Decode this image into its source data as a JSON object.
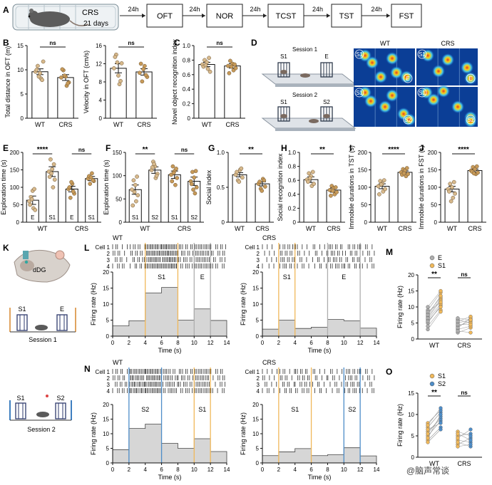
{
  "timeline": {
    "cage_label": "CRS",
    "days_label": "21 days",
    "interval": "24h",
    "steps": [
      "OFT",
      "NOR",
      "TCST",
      "TST",
      "FST"
    ]
  },
  "panel_letters": [
    "A",
    "B",
    "C",
    "D",
    "E",
    "F",
    "G",
    "H",
    "I",
    "J",
    "K",
    "L",
    "M",
    "N",
    "O"
  ],
  "groups": [
    "WT",
    "CRS"
  ],
  "sig": {
    "ns": "ns",
    "p2": "**",
    "p4": "****"
  },
  "colors": {
    "wt_fill": "#ffffff",
    "crs_fill": "#ffffff",
    "pt_wt": "#d7b98c",
    "pt_crs": "#c79a59",
    "ramp_hot": "#e53b20",
    "ramp_cold": "#0b3e96",
    "E": "#aeaeae",
    "S1": "#f0b85a",
    "S2": "#4e8dc8",
    "hist": "#d6d6d6"
  },
  "chart_data": [
    {
      "panel": "B1",
      "type": "bar",
      "ylabel": "Total distance in OFT (m)",
      "ylim": [
        0,
        15
      ],
      "yticks": [
        0,
        5,
        10,
        15
      ],
      "categories": [
        "WT",
        "CRS"
      ],
      "values": [
        9.6,
        8.4
      ],
      "err": [
        0.6,
        0.6
      ],
      "points": [
        [
          9.6,
          8.2,
          10.8,
          11.7,
          9.3,
          10.0,
          7.9,
          8.6
        ],
        [
          8.4,
          6.7,
          9.9,
          7.4,
          8.6,
          10.1,
          7.2,
          8.8
        ]
      ],
      "sig": "ns"
    },
    {
      "panel": "B2",
      "type": "bar",
      "ylabel": "Velocity in OFT (cm/s)",
      "ylim": [
        0,
        16
      ],
      "yticks": [
        0,
        4,
        8,
        12,
        16
      ],
      "categories": [
        "WT",
        "CRS"
      ],
      "values": [
        11.0,
        10.2
      ],
      "err": [
        1.0,
        0.7
      ],
      "points": [
        [
          11.0,
          7.5,
          14.0,
          12.1,
          9.4,
          13.5,
          8.2,
          12.3
        ],
        [
          10.0,
          8.1,
          11.5,
          9.1,
          12.0,
          10.8,
          9.5
        ]
      ],
      "sig": "ns"
    },
    {
      "panel": "C",
      "type": "bar",
      "ylabel": "Novel object recognition index",
      "ylim": [
        0,
        1
      ],
      "yticks": [
        0,
        0.2,
        0.4,
        0.6,
        0.8,
        1
      ],
      "ytick_labels": [
        "0",
        "0.2",
        "0.4",
        "0.6",
        "0.8",
        "1.0"
      ],
      "categories": [
        "WT",
        "CRS"
      ],
      "values": [
        0.74,
        0.72
      ],
      "err": [
        0.03,
        0.03
      ],
      "points": [
        [
          0.74,
          0.68,
          0.8,
          0.64,
          0.77,
          0.71,
          0.83,
          0.73
        ],
        [
          0.72,
          0.66,
          0.79,
          0.69,
          0.75,
          0.62,
          0.74,
          0.71
        ]
      ],
      "sig": "ns"
    },
    {
      "panel": "E",
      "type": "bar",
      "ylabel": "Exploration time (s)",
      "ylim": [
        0,
        200
      ],
      "yticks": [
        0,
        50,
        100,
        150,
        200
      ],
      "categories": [
        "E",
        "S1",
        "E",
        "S1"
      ],
      "groups": [
        "WT",
        "CRS"
      ],
      "values": [
        63,
        145,
        95,
        125
      ],
      "err": [
        12,
        14,
        8,
        6
      ],
      "points": [
        [
          60,
          40,
          72,
          35,
          90,
          50,
          95,
          66
        ],
        [
          145,
          100,
          180,
          122,
          152,
          130,
          166,
          140
        ],
        [
          95,
          70,
          110,
          82,
          100,
          115,
          88
        ],
        [
          125,
          110,
          140,
          118,
          132,
          128,
          120
        ]
      ],
      "sig": [
        "****",
        "ns"
      ]
    },
    {
      "panel": "F",
      "type": "bar",
      "ylabel": "Exploration time (s)",
      "ylim": [
        0,
        150
      ],
      "yticks": [
        0,
        50,
        100,
        150
      ],
      "categories": [
        "S1",
        "S2",
        "S1",
        "S2"
      ],
      "groups": [
        "WT",
        "CRS"
      ],
      "values": [
        70,
        112,
        102,
        88
      ],
      "err": [
        10,
        7,
        8,
        9
      ],
      "points": [
        [
          70,
          45,
          90,
          58,
          80,
          36,
          98,
          65
        ],
        [
          112,
          95,
          130,
          104,
          120,
          118,
          100,
          125
        ],
        [
          102,
          80,
          120,
          95,
          110,
          88,
          115,
          106
        ],
        [
          88,
          62,
          108,
          75,
          96,
          82,
          110,
          70
        ]
      ],
      "sig": [
        "**",
        "ns"
      ]
    },
    {
      "panel": "G",
      "type": "bar",
      "ylabel": "Social index",
      "ylim": [
        0,
        1
      ],
      "yticks": [
        0,
        0.5,
        1
      ],
      "ytick_labels": [
        "0",
        "0.5",
        "1.0"
      ],
      "categories": [
        "WT",
        "CRS"
      ],
      "values": [
        0.68,
        0.55
      ],
      "err": [
        0.03,
        0.03
      ],
      "points": [
        [
          0.68,
          0.6,
          0.75,
          0.64,
          0.72,
          0.58,
          0.77
        ],
        [
          0.55,
          0.48,
          0.62,
          0.51,
          0.58,
          0.45,
          0.6
        ]
      ],
      "sig": "**"
    },
    {
      "panel": "H",
      "type": "bar",
      "ylabel": "Social recognition index",
      "ylim": [
        0,
        1
      ],
      "yticks": [
        0,
        0.2,
        0.4,
        0.6,
        0.8,
        1
      ],
      "ytick_labels": [
        "0",
        "0.2",
        "0.4",
        "0.6",
        "0.8",
        "1.0"
      ],
      "categories": [
        "WT",
        "CRS"
      ],
      "values": [
        0.61,
        0.46
      ],
      "err": [
        0.04,
        0.03
      ],
      "points": [
        [
          0.61,
          0.52,
          0.7,
          0.55,
          0.66,
          0.58,
          0.72,
          0.63
        ],
        [
          0.46,
          0.4,
          0.52,
          0.43,
          0.49,
          0.38,
          0.5,
          0.45
        ]
      ],
      "sig": "**"
    },
    {
      "panel": "I",
      "type": "bar",
      "ylabel": "Immobile durations in TST (s)",
      "ylim": [
        0,
        200
      ],
      "yticks": [
        0,
        50,
        100,
        150,
        200
      ],
      "categories": [
        "WT",
        "CRS"
      ],
      "values": [
        103,
        143
      ],
      "err": [
        7,
        4
      ],
      "points": [
        [
          103,
          88,
          118,
          95,
          110,
          80,
          120,
          108
        ],
        [
          143,
          132,
          152,
          138,
          148,
          136,
          155,
          140
        ]
      ],
      "sig": "****"
    },
    {
      "panel": "J",
      "type": "bar",
      "ylabel": "Immobile durations in FST (s)",
      "ylim": [
        0,
        200
      ],
      "yticks": [
        0,
        50,
        100,
        150,
        200
      ],
      "categories": [
        "WT",
        "CRS"
      ],
      "values": [
        95,
        148
      ],
      "err": [
        8,
        4
      ],
      "points": [
        [
          95,
          70,
          110,
          82,
          100,
          88,
          115,
          60
        ],
        [
          148,
          138,
          158,
          142,
          152,
          145,
          160,
          140
        ]
      ],
      "sig": "****"
    },
    {
      "panel": "L1",
      "type": "area",
      "group": "WT",
      "ylabel": "Firing rate (Hz)",
      "xlabel": "Time (s)",
      "ylim": [
        0,
        20
      ],
      "yticks": [
        0,
        5,
        10,
        15,
        20
      ],
      "xlim": [
        0,
        14
      ],
      "xticks": [
        0,
        2,
        4,
        6,
        8,
        10,
        12,
        14
      ],
      "bins": [
        0,
        2,
        4,
        6,
        8,
        10,
        12,
        14
      ],
      "rates": [
        3.2,
        4.8,
        13.5,
        15.2,
        5.0,
        8.5,
        4.9
      ],
      "zones": [
        {
          "label": "S1",
          "x0": 4,
          "x1": 8,
          "color": "S1"
        },
        {
          "label": "E",
          "x0": 10,
          "x1": 12,
          "color": "E"
        }
      ],
      "cells": [
        "Cell 1",
        "2",
        "3",
        "4"
      ],
      "title": "WT"
    },
    {
      "panel": "L2",
      "type": "area",
      "group": "CRS",
      "ylabel": "Firing rate (Hz)",
      "xlabel": "Time (s)",
      "ylim": [
        0,
        20
      ],
      "yticks": [
        0,
        5,
        10,
        15,
        20
      ],
      "xlim": [
        0,
        14
      ],
      "xticks": [
        0,
        2,
        4,
        6,
        8,
        10,
        12,
        14
      ],
      "bins": [
        0,
        2,
        4,
        6,
        8,
        10,
        12,
        14
      ],
      "rates": [
        2.2,
        5.0,
        2.4,
        2.8,
        5.2,
        4.8,
        2.5
      ],
      "zones": [
        {
          "label": "S1",
          "x0": 2,
          "x1": 4,
          "color": "S1"
        },
        {
          "label": "E",
          "x0": 8,
          "x1": 12,
          "color": "E"
        }
      ],
      "cells": [
        "Cell 1",
        "2",
        "3",
        "4"
      ],
      "title": "CRS"
    },
    {
      "panel": "N1",
      "type": "area",
      "group": "WT",
      "ylabel": "Firing rate (Hz)",
      "xlabel": "Time (s)",
      "ylim": [
        0,
        20
      ],
      "yticks": [
        0,
        5,
        10,
        15,
        20
      ],
      "xlim": [
        0,
        14
      ],
      "xticks": [
        0,
        2,
        4,
        6,
        8,
        10,
        12,
        14
      ],
      "bins": [
        0,
        2,
        4,
        6,
        8,
        10,
        12,
        14
      ],
      "rates": [
        4.5,
        11.8,
        13.3,
        6.7,
        5.0,
        8.3,
        3.9
      ],
      "zones": [
        {
          "label": "S2",
          "x0": 2,
          "x1": 6,
          "color": "S2"
        },
        {
          "label": "S1",
          "x0": 10,
          "x1": 12,
          "color": "S1"
        }
      ],
      "cells": [
        "Cell 1",
        "2",
        "3",
        "4"
      ],
      "title": "WT"
    },
    {
      "panel": "N2",
      "type": "area",
      "group": "CRS",
      "ylabel": "Firing rate (Hz)",
      "xlabel": "Time (s)",
      "ylim": [
        0,
        20
      ],
      "yticks": [
        0,
        5,
        10,
        15,
        20
      ],
      "xlim": [
        0,
        14
      ],
      "xticks": [
        0,
        2,
        4,
        6,
        8,
        10,
        12,
        14
      ],
      "bins": [
        0,
        2,
        4,
        6,
        8,
        10,
        12,
        14
      ],
      "rates": [
        2.5,
        3.8,
        4.9,
        2.5,
        2.8,
        5.2,
        2.4
      ],
      "zones": [
        {
          "label": "S1",
          "x0": 2,
          "x1": 6,
          "color": "S1"
        },
        {
          "label": "S2",
          "x0": 10,
          "x1": 12,
          "color": "S2"
        }
      ],
      "cells": [
        "Cell 1",
        "2",
        "3",
        "4"
      ],
      "title": "CRS"
    },
    {
      "panel": "M",
      "type": "line",
      "ylabel": "Firing rate (Hz)",
      "ylim": [
        0,
        20
      ],
      "yticks": [
        0,
        5,
        10,
        15,
        20
      ],
      "categories": [
        "WT",
        "CRS"
      ],
      "legend": [
        {
          "label": "E",
          "color": "E"
        },
        {
          "label": "S1",
          "color": "S1"
        }
      ],
      "pairs": {
        "WT": [
          [
            4.0,
            9.0
          ],
          [
            5.0,
            10.5
          ],
          [
            6.0,
            11.0
          ],
          [
            7.0,
            12.5
          ],
          [
            8.0,
            13.0
          ],
          [
            9.0,
            14.5
          ],
          [
            10.0,
            15.0
          ],
          [
            3.0,
            8.5
          ],
          [
            6.5,
            12.0
          ],
          [
            8.5,
            11.5
          ],
          [
            5.5,
            10.0
          ],
          [
            7.5,
            13.5
          ]
        ],
        "CRS": [
          [
            2.0,
            3.5
          ],
          [
            3.0,
            4.0
          ],
          [
            4.0,
            5.5
          ],
          [
            5.0,
            6.0
          ],
          [
            6.0,
            5.0
          ],
          [
            3.5,
            6.5
          ],
          [
            2.5,
            2.0
          ],
          [
            4.5,
            4.5
          ],
          [
            5.5,
            7.0
          ],
          [
            6.5,
            6.0
          ]
        ]
      },
      "sig": [
        "**",
        "ns"
      ]
    },
    {
      "panel": "O",
      "type": "line",
      "ylabel": "Firing rate (Hz)",
      "ylim": [
        0,
        15
      ],
      "yticks": [
        0,
        5,
        10,
        15
      ],
      "categories": [
        "WT",
        "CRS"
      ],
      "legend": [
        {
          "label": "S1",
          "color": "S1"
        },
        {
          "label": "S2",
          "color": "S2"
        }
      ],
      "pairs": {
        "WT": [
          [
            4.0,
            7.0
          ],
          [
            5.0,
            8.5
          ],
          [
            6.0,
            9.0
          ],
          [
            7.0,
            10.5
          ],
          [
            8.0,
            11.0
          ],
          [
            5.5,
            9.5
          ],
          [
            6.5,
            8.0
          ],
          [
            4.5,
            10.0
          ],
          [
            7.5,
            11.5
          ],
          [
            3.5,
            6.5
          ]
        ],
        "CRS": [
          [
            3.0,
            4.5
          ],
          [
            4.0,
            3.5
          ],
          [
            5.0,
            5.5
          ],
          [
            6.0,
            5.0
          ],
          [
            4.5,
            6.5
          ],
          [
            3.5,
            2.5
          ],
          [
            5.5,
            4.0
          ],
          [
            2.5,
            3.0
          ]
        ]
      },
      "sig": [
        "**",
        "ns"
      ]
    }
  ],
  "panelD": {
    "session1": "Session 1",
    "session2": "Session 2",
    "s1": "S1",
    "s2": "S2",
    "e": "E",
    "col_wt": "WT",
    "col_crs": "CRS"
  },
  "panelK": {
    "region": "dDG",
    "s1": "S1",
    "e": "E",
    "s2": "S2",
    "session1": "Session 1",
    "session2": "Session 2"
  },
  "watermark": "@脑声常谈"
}
